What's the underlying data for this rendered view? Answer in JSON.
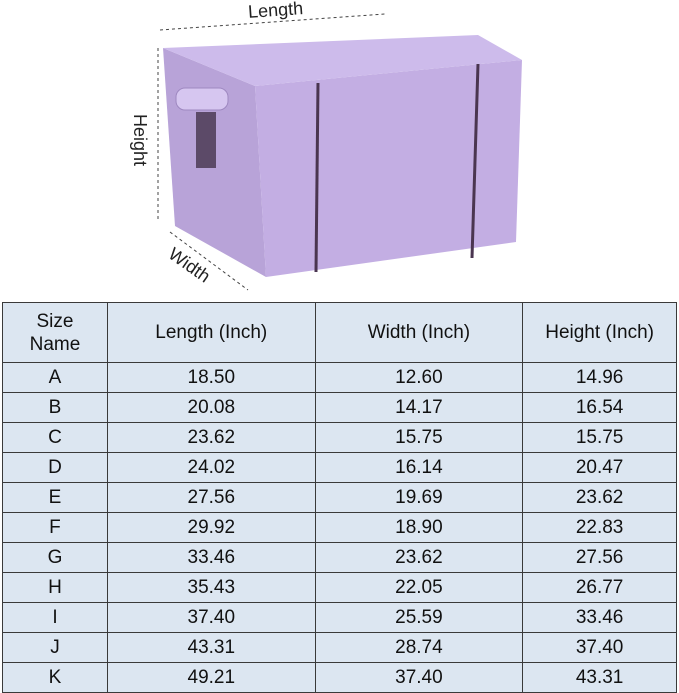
{
  "image": {
    "labels": {
      "length": "Length",
      "height": "Height",
      "width": "Width"
    }
  },
  "table": {
    "headers": [
      "Size Name",
      "Length (Inch)",
      "Width (Inch)",
      "Height (Inch)"
    ],
    "rows": [
      [
        "A",
        "18.50",
        "12.60",
        "14.96"
      ],
      [
        "B",
        "20.08",
        "14.17",
        "16.54"
      ],
      [
        "C",
        "23.62",
        "15.75",
        "15.75"
      ],
      [
        "D",
        "24.02",
        "16.14",
        "20.47"
      ],
      [
        "E",
        "27.56",
        "19.69",
        "23.62"
      ],
      [
        "F",
        "29.92",
        "18.90",
        "22.83"
      ],
      [
        "G",
        "33.46",
        "23.62",
        "27.56"
      ],
      [
        "H",
        "35.43",
        "22.05",
        "26.77"
      ],
      [
        "I",
        "37.40",
        "25.59",
        "33.46"
      ],
      [
        "J",
        "43.31",
        "28.74",
        "37.40"
      ],
      [
        "K",
        "49.21",
        "37.40",
        "43.31"
      ]
    ]
  }
}
